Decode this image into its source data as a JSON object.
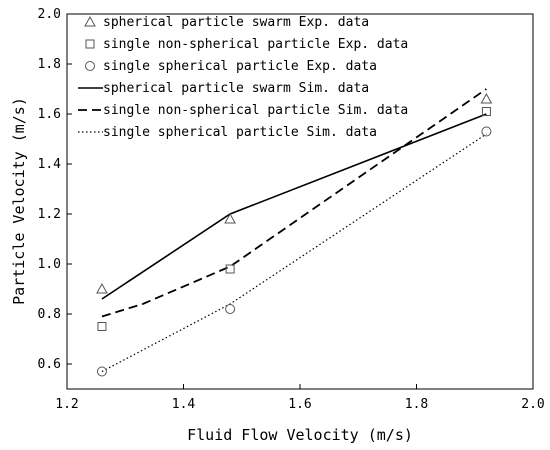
{
  "chart_data": {
    "type": "line",
    "xlabel": "Fluid Flow Velocity (m/s)",
    "ylabel": "Particle Velocity (m/s)",
    "xlim": [
      1.2,
      2.0
    ],
    "ylim": [
      0.5,
      2.0
    ],
    "xticks": [
      "1.2",
      "1.4",
      "1.6",
      "1.8",
      "2.0"
    ],
    "yticks": [
      "0.6",
      "0.8",
      "1.0",
      "1.2",
      "1.4",
      "1.6",
      "1.8",
      "2.0"
    ],
    "grid": false,
    "legend_position": "top-left",
    "series": [
      {
        "name": "spherical particle swarm Exp. data",
        "kind": "scatter",
        "marker": "triangle",
        "x": [
          1.26,
          1.48,
          1.92
        ],
        "y": [
          0.9,
          1.18,
          1.66
        ]
      },
      {
        "name": "single non-spherical particle Exp. data",
        "kind": "scatter",
        "marker": "square",
        "x": [
          1.26,
          1.48,
          1.92
        ],
        "y": [
          0.75,
          0.98,
          1.61
        ]
      },
      {
        "name": "single spherical particle Exp. data",
        "kind": "scatter",
        "marker": "circle",
        "x": [
          1.26,
          1.48,
          1.92
        ],
        "y": [
          0.57,
          0.82,
          1.53
        ]
      },
      {
        "name": "spherical particle swarm Sim. data",
        "kind": "line",
        "dash": "solid",
        "x": [
          1.26,
          1.48,
          1.92
        ],
        "y": [
          0.86,
          1.2,
          1.6
        ]
      },
      {
        "name": "single non-spherical particle Sim. data",
        "kind": "line",
        "dash": "dashed",
        "x": [
          1.26,
          1.33,
          1.48,
          1.92
        ],
        "y": [
          0.79,
          0.84,
          0.99,
          1.7
        ]
      },
      {
        "name": "single spherical particle Sim. data",
        "kind": "line",
        "dash": "dotted",
        "x": [
          1.26,
          1.48,
          1.92
        ],
        "y": [
          0.57,
          0.84,
          1.52
        ]
      }
    ]
  }
}
